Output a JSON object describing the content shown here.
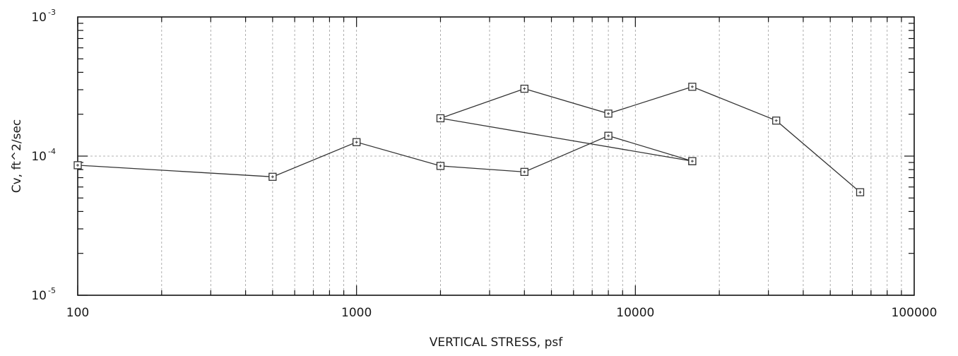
{
  "chart_data": {
    "type": "line",
    "xlabel": "VERTICAL STRESS, psf",
    "ylabel": "Cv, ft^2/sec",
    "x_scale": "log",
    "y_scale": "log",
    "xlim": [
      100,
      100000
    ],
    "ylim": [
      1e-05,
      0.001
    ],
    "x_ticks": [
      {
        "value": 100,
        "label": "100"
      },
      {
        "value": 1000,
        "label": "1000"
      },
      {
        "value": 10000,
        "label": "10000"
      },
      {
        "value": 100000,
        "label": "100000"
      }
    ],
    "y_ticks": [
      {
        "value": 1e-05,
        "base": "10",
        "exp": "-5"
      },
      {
        "value": 0.0001,
        "base": "10",
        "exp": "-4"
      },
      {
        "value": 0.001,
        "base": "10",
        "exp": "-3"
      }
    ],
    "grid": true,
    "marker": "square",
    "line_color": "#333333",
    "series": [
      {
        "x": [
          100,
          500,
          1000,
          2000,
          4000,
          8000,
          16000
        ],
        "y": [
          8.6e-05,
          7.1e-05,
          0.000126,
          8.5e-05,
          7.7e-05,
          0.00014,
          9.2e-05
        ]
      },
      {
        "x": [
          16000,
          2000,
          4000,
          8000,
          16000,
          32000,
          64000
        ],
        "y": [
          9.2e-05,
          0.000187,
          0.000305,
          0.000202,
          0.000315,
          0.00018,
          5.5e-05
        ]
      }
    ]
  }
}
